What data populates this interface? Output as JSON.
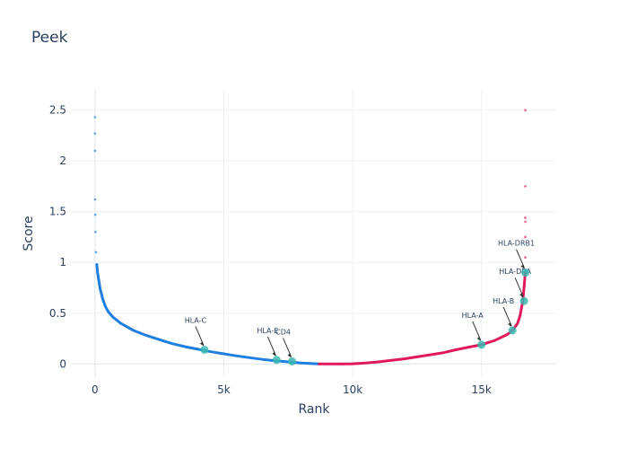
{
  "chart_data": {
    "type": "scatter",
    "title": "Peek",
    "xlabel": "Rank",
    "ylabel": "Score",
    "xlim": [
      -900,
      17900
    ],
    "ylim": [
      -0.13,
      2.7
    ],
    "x_ticks": [
      0,
      5000,
      10000,
      15000
    ],
    "x_tick_labels": [
      "0",
      "5k",
      "10k",
      "15k"
    ],
    "y_ticks": [
      0,
      0.5,
      1,
      1.5,
      2,
      2.5
    ],
    "y_tick_labels": [
      "0",
      "0.5",
      "1",
      "1.5",
      "2",
      "2.5"
    ],
    "grid": true,
    "series": [
      {
        "color": "#1f7fe0",
        "x": [
          0,
          0,
          0,
          0,
          10,
          20,
          40,
          70,
          100,
          150,
          200,
          300,
          400,
          500,
          700,
          1000,
          1500,
          2000,
          2500,
          3000,
          3500,
          4000,
          4500,
          5000,
          5500,
          6000,
          6500,
          7000,
          7500,
          8000,
          8700
        ],
        "y": [
          2.43,
          2.27,
          2.1,
          1.62,
          1.47,
          1.3,
          1.1,
          0.98,
          0.9,
          0.82,
          0.74,
          0.64,
          0.57,
          0.52,
          0.46,
          0.4,
          0.33,
          0.28,
          0.24,
          0.2,
          0.17,
          0.145,
          0.12,
          0.1,
          0.08,
          0.062,
          0.045,
          0.032,
          0.02,
          0.01,
          0.0
        ]
      },
      {
        "color": "#e0195b",
        "x": [
          8700,
          9500,
          10000,
          10500,
          11000,
          11500,
          12000,
          12500,
          13000,
          13500,
          14000,
          14500,
          15000,
          15500,
          16000,
          16200,
          16400,
          16500,
          16600,
          16650,
          16700,
          16700,
          16700,
          16700,
          16700,
          16700,
          16700
        ],
        "y": [
          0.0,
          0.0,
          0.002,
          0.01,
          0.02,
          0.035,
          0.05,
          0.07,
          0.09,
          0.11,
          0.14,
          0.165,
          0.19,
          0.23,
          0.29,
          0.33,
          0.4,
          0.48,
          0.62,
          0.75,
          0.9,
          1.05,
          1.25,
          1.4,
          1.44,
          1.75,
          2.5
        ]
      }
    ],
    "annotations": [
      {
        "text": "HLA-C",
        "x": 4250,
        "y": 0.14
      },
      {
        "text": "HLA-E",
        "x": 7050,
        "y": 0.04
      },
      {
        "text": "CD4",
        "x": 7650,
        "y": 0.025
      },
      {
        "text": "HLA-A",
        "x": 15000,
        "y": 0.19
      },
      {
        "text": "HLA-B",
        "x": 16200,
        "y": 0.33
      },
      {
        "text": "HLA-DRA",
        "x": 16650,
        "y": 0.62
      },
      {
        "text": "HLA-DRB1",
        "x": 16700,
        "y": 0.9
      }
    ],
    "highlight_color": "#3bb7b0"
  }
}
